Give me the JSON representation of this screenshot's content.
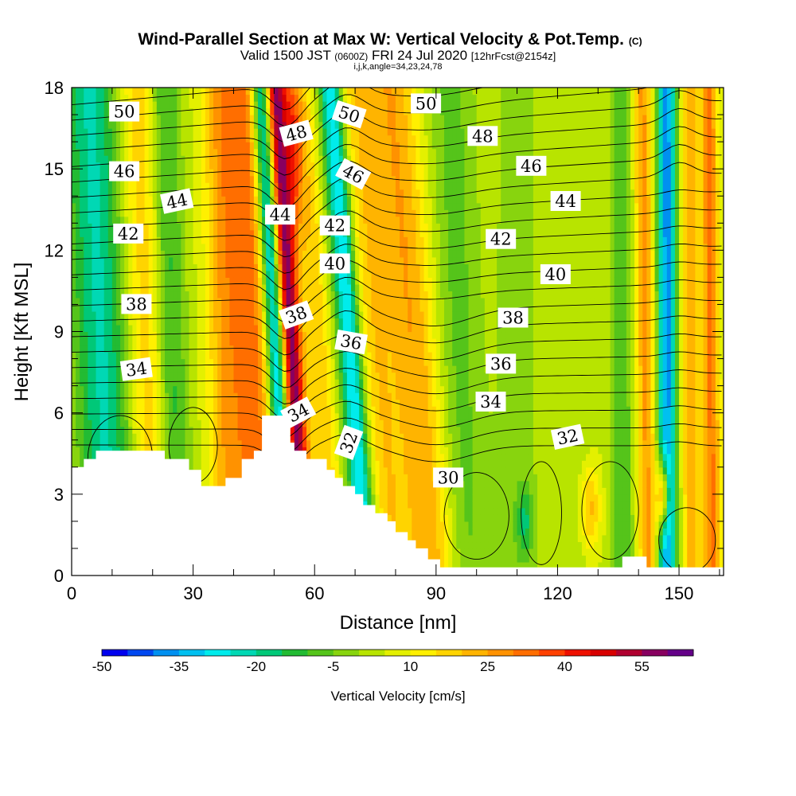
{
  "chart_data": {
    "type": "heatmap",
    "title": "Wind-Parallel Section at Max W: Vertical Velocity & Pot.Temp.",
    "title_mark": "(C)",
    "subtitle": {
      "valid": "Valid 1500 JST",
      "utc": "(0600Z)",
      "date": "FRI 24 Jul 2020",
      "forecast": "[12hrFcst@2154z]",
      "indices": "i,j,k,angle=34,23,24,78"
    },
    "xlabel": "Distance [nm]",
    "ylabel": "Height [Kft MSL]",
    "xlim": [
      0,
      161
    ],
    "ylim": [
      0,
      18
    ],
    "x_ticks": [
      "0",
      "30",
      "60",
      "90",
      "120",
      "150"
    ],
    "y_ticks": [
      "0",
      "3",
      "6",
      "9",
      "12",
      "15",
      "18"
    ],
    "colorbar": {
      "title": "Vertical Velocity [cm/s]",
      "range": [
        -50,
        65
      ],
      "step": 5,
      "tick_labels": [
        "-50",
        "-35",
        "-20",
        "-5",
        "10",
        "25",
        "40",
        "55"
      ],
      "colors": [
        "#0000ee",
        "#0048f0",
        "#0090f0",
        "#00c0f0",
        "#00ecec",
        "#00d8b4",
        "#00c878",
        "#22bb33",
        "#55c41a",
        "#88d40e",
        "#b8e400",
        "#e4f000",
        "#fff000",
        "#ffd400",
        "#ffb400",
        "#ff9200",
        "#ff6e00",
        "#ff4000",
        "#ee1000",
        "#d80000",
        "#b00030",
        "#880060",
        "#640088"
      ]
    },
    "potential_temperature_contour_labels": [
      {
        "text": "50",
        "x": 13,
        "y": 17.1,
        "angle": 0
      },
      {
        "text": "46",
        "x": 13,
        "y": 14.9,
        "angle": 0
      },
      {
        "text": "44",
        "x": 26,
        "y": 13.8,
        "angle": -12
      },
      {
        "text": "42",
        "x": 14,
        "y": 12.6,
        "angle": 0
      },
      {
        "text": "38",
        "x": 16,
        "y": 10.0,
        "angle": 0
      },
      {
        "text": "34",
        "x": 16,
        "y": 7.6,
        "angle": -8
      },
      {
        "text": "48",
        "x": 55.5,
        "y": 16.3,
        "angle": -15
      },
      {
        "text": "44",
        "x": 51.5,
        "y": 13.3,
        "angle": 0
      },
      {
        "text": "38",
        "x": 55.5,
        "y": 9.6,
        "angle": -20
      },
      {
        "text": "34",
        "x": 56,
        "y": 6.0,
        "angle": -28
      },
      {
        "text": "50",
        "x": 68.5,
        "y": 17.0,
        "angle": 18
      },
      {
        "text": "46",
        "x": 69.5,
        "y": 14.8,
        "angle": 28
      },
      {
        "text": "42",
        "x": 65,
        "y": 12.9,
        "angle": 0
      },
      {
        "text": "40",
        "x": 65,
        "y": 11.5,
        "angle": 0
      },
      {
        "text": "36",
        "x": 69,
        "y": 8.6,
        "angle": 10
      },
      {
        "text": "32",
        "x": 68.5,
        "y": 4.9,
        "angle": -70
      },
      {
        "text": "50",
        "x": 87.5,
        "y": 17.4,
        "angle": 0
      },
      {
        "text": "48",
        "x": 101.5,
        "y": 16.2,
        "angle": 0
      },
      {
        "text": "46",
        "x": 113.5,
        "y": 15.1,
        "angle": 0
      },
      {
        "text": "44",
        "x": 122,
        "y": 13.8,
        "angle": 0
      },
      {
        "text": "42",
        "x": 106,
        "y": 12.4,
        "angle": 0
      },
      {
        "text": "40",
        "x": 119.5,
        "y": 11.1,
        "angle": 0
      },
      {
        "text": "38",
        "x": 109,
        "y": 9.5,
        "angle": 0
      },
      {
        "text": "36",
        "x": 106,
        "y": 7.8,
        "angle": 0
      },
      {
        "text": "34",
        "x": 103.5,
        "y": 6.4,
        "angle": 0
      },
      {
        "text": "32",
        "x": 122.5,
        "y": 5.1,
        "angle": -12
      },
      {
        "text": "30",
        "x": 93,
        "y": 3.6,
        "angle": 0
      }
    ],
    "terrain_profile_kft": [
      [
        0,
        4.0
      ],
      [
        3,
        4.0
      ],
      [
        3,
        4.3
      ],
      [
        6,
        4.3
      ],
      [
        6,
        4.6
      ],
      [
        23,
        4.6
      ],
      [
        23,
        4.3
      ],
      [
        29,
        4.3
      ],
      [
        29,
        3.9
      ],
      [
        32,
        3.9
      ],
      [
        32,
        3.3
      ],
      [
        38,
        3.3
      ],
      [
        38,
        3.6
      ],
      [
        42,
        3.6
      ],
      [
        42,
        4.3
      ],
      [
        45,
        4.3
      ],
      [
        45,
        4.6
      ],
      [
        47,
        4.6
      ],
      [
        47,
        5.9
      ],
      [
        54,
        5.9
      ],
      [
        54,
        4.9
      ],
      [
        55,
        4.9
      ],
      [
        55,
        4.6
      ],
      [
        58,
        4.6
      ],
      [
        58,
        4.3
      ],
      [
        63,
        4.3
      ],
      [
        63,
        3.9
      ],
      [
        65,
        3.9
      ],
      [
        65,
        3.6
      ],
      [
        67,
        3.6
      ],
      [
        67,
        3.3
      ],
      [
        70,
        3.3
      ],
      [
        70,
        3.0
      ],
      [
        72,
        3.0
      ],
      [
        72,
        2.6
      ],
      [
        75,
        2.6
      ],
      [
        75,
        2.3
      ],
      [
        78,
        2.3
      ],
      [
        78,
        2.0
      ],
      [
        80,
        2.0
      ],
      [
        80,
        1.6
      ],
      [
        83,
        1.6
      ],
      [
        83,
        1.3
      ],
      [
        85,
        1.3
      ],
      [
        85,
        1.0
      ],
      [
        88,
        1.0
      ],
      [
        88,
        0.6
      ],
      [
        91,
        0.6
      ],
      [
        91,
        0.3
      ],
      [
        136,
        0.3
      ],
      [
        136,
        0.7
      ],
      [
        142,
        0.7
      ],
      [
        142,
        0.3
      ],
      [
        161,
        0.3
      ],
      [
        161,
        0
      ]
    ]
  }
}
